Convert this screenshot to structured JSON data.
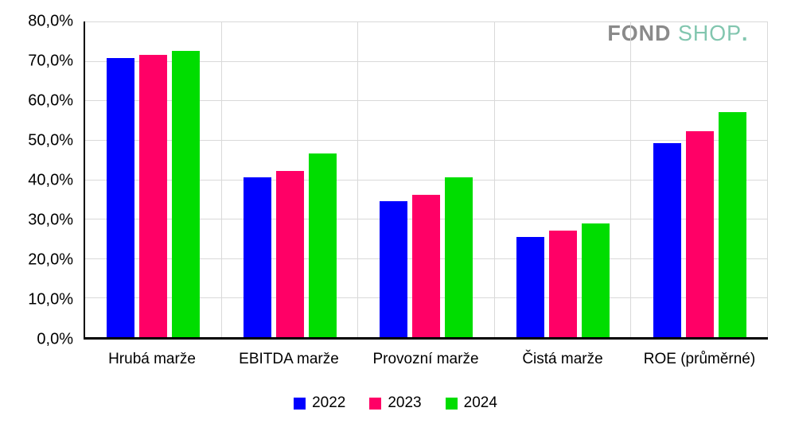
{
  "logo": {
    "part1": "FOND",
    "part2": "SHOP",
    "dot": ".",
    "part1_color": "#8a8a8a",
    "part2_color": "#82c6af"
  },
  "chart_data": {
    "type": "bar",
    "title": "",
    "xlabel": "",
    "ylabel": "",
    "categories": [
      "Hrubá marže",
      "EBITDA marže",
      "Provozní marže",
      "Čistá marže",
      "ROE (průměrné)"
    ],
    "series": [
      {
        "name": "2022",
        "color": "#0000ff",
        "values": [
          70.7,
          40.6,
          34.5,
          25.3,
          49.2
        ]
      },
      {
        "name": "2023",
        "color": "#ff0066",
        "values": [
          71.5,
          42.2,
          36.0,
          27.1,
          52.1
        ]
      },
      {
        "name": "2024",
        "color": "#00dd00",
        "values": [
          72.5,
          46.5,
          40.5,
          28.9,
          57.1
        ]
      }
    ],
    "y_axis": {
      "min": 0,
      "max": 80,
      "step": 10,
      "tick_labels": [
        "0,0%",
        "10,0%",
        "20,0%",
        "30,0%",
        "40,0%",
        "50,0%",
        "60,0%",
        "70,0%",
        "80,0%"
      ]
    },
    "grid": true,
    "gridline_color": "#d9d9d9",
    "axis_color": "#000000",
    "legend_position": "bottom"
  }
}
